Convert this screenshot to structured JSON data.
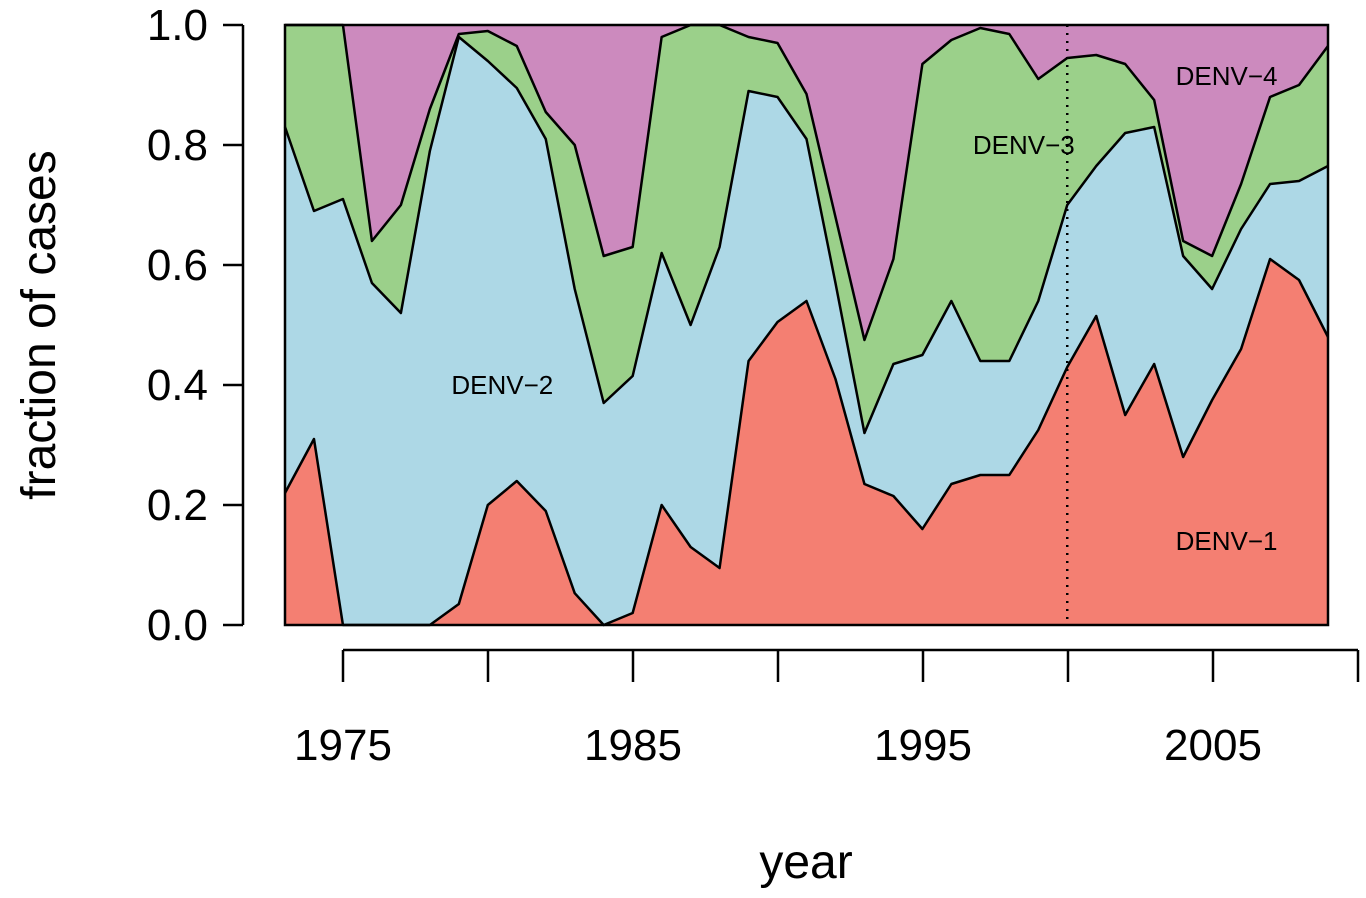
{
  "chart_data": {
    "type": "area",
    "stacked": true,
    "normalized": true,
    "title": "",
    "xlabel": "year",
    "ylabel": "fraction of cases",
    "xlim": [
      1973,
      2009
    ],
    "ylim": [
      0,
      1
    ],
    "x_ticks": [
      1975,
      1980,
      1985,
      1990,
      1995,
      2000,
      2005,
      2010
    ],
    "x_tick_labels": [
      "1975",
      "",
      "1985",
      "",
      "1995",
      "",
      "2005",
      ""
    ],
    "y_ticks": [
      0.0,
      0.2,
      0.4,
      0.6,
      0.8,
      1.0
    ],
    "y_tick_labels": [
      "0.0",
      "0.2",
      "0.4",
      "0.6",
      "0.8",
      "1.0"
    ],
    "reference_line": {
      "x": 2000,
      "style": "dotted"
    },
    "x": [
      1973,
      1974,
      1975,
      1976,
      1977,
      1978,
      1979,
      1980,
      1981,
      1982,
      1983,
      1984,
      1985,
      1986,
      1987,
      1988,
      1989,
      1990,
      1991,
      1992,
      1993,
      1994,
      1995,
      1996,
      1997,
      1998,
      1999,
      2000,
      2001,
      2002,
      2003,
      2004,
      2005,
      2006,
      2007,
      2008,
      2009
    ],
    "series": [
      {
        "name": "DENV-1",
        "color": "#F47F72",
        "cumulative": [
          0.22,
          0.31,
          0.0,
          0.0,
          0.0,
          0.0,
          0.035,
          0.2,
          0.24,
          0.19,
          0.053,
          0.0,
          0.02,
          0.2,
          0.13,
          0.095,
          0.44,
          0.505,
          0.54,
          0.41,
          0.235,
          0.215,
          0.16,
          0.235,
          0.25,
          0.25,
          0.325,
          0.43,
          0.515,
          0.35,
          0.435,
          0.28,
          0.375,
          0.46,
          0.61,
          0.575,
          0.48
        ]
      },
      {
        "name": "DENV-2",
        "color": "#ADD8E6",
        "cumulative": [
          0.83,
          0.69,
          0.71,
          0.57,
          0.52,
          0.79,
          0.98,
          0.94,
          0.895,
          0.81,
          0.56,
          0.37,
          0.415,
          0.62,
          0.5,
          0.63,
          0.89,
          0.88,
          0.81,
          0.57,
          0.32,
          0.435,
          0.45,
          0.54,
          0.44,
          0.44,
          0.54,
          0.7,
          0.765,
          0.82,
          0.83,
          0.615,
          0.56,
          0.66,
          0.735,
          0.74,
          0.765
        ]
      },
      {
        "name": "DENV-3",
        "color": "#9BD08A",
        "cumulative": [
          1.0,
          1.0,
          1.0,
          0.64,
          0.7,
          0.86,
          0.985,
          0.99,
          0.965,
          0.855,
          0.8,
          0.615,
          0.63,
          0.98,
          1.0,
          1.0,
          0.98,
          0.97,
          0.885,
          0.68,
          0.475,
          0.61,
          0.935,
          0.975,
          0.995,
          0.985,
          0.91,
          0.945,
          0.95,
          0.935,
          0.875,
          0.64,
          0.615,
          0.735,
          0.88,
          0.9,
          0.965
        ]
      },
      {
        "name": "DENV-4",
        "color": "#CC8ABE",
        "cumulative": [
          1,
          1,
          1,
          1,
          1,
          1,
          1,
          1,
          1,
          1,
          1,
          1,
          1,
          1,
          1,
          1,
          1,
          1,
          1,
          1,
          1,
          1,
          1,
          1,
          1,
          1,
          1,
          1,
          1,
          1,
          1,
          1,
          1,
          1,
          1,
          1,
          1
        ]
      }
    ],
    "labels": [
      {
        "text": "DENV-1",
        "x": 2005.5,
        "y": 0.14
      },
      {
        "text": "DENV-2",
        "x": 1980.5,
        "y": 0.4
      },
      {
        "text": "DENV-3",
        "x": 1998.5,
        "y": 0.8
      },
      {
        "text": "DENV-4",
        "x": 2005.5,
        "y": 0.915
      }
    ]
  }
}
